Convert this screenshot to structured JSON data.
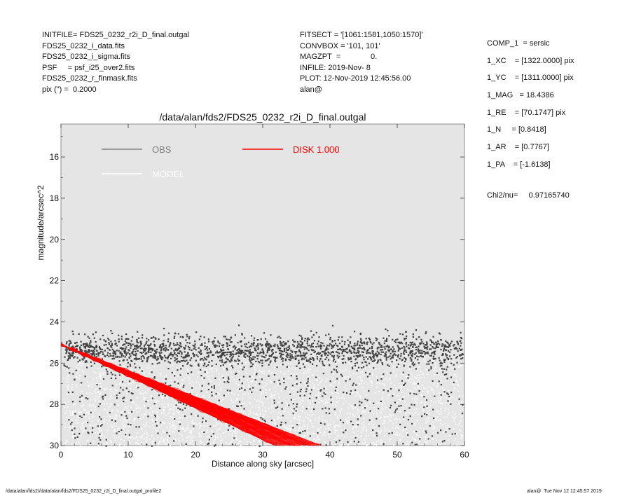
{
  "header_left": [
    "INITFILE= FDS25_0232_r2i_D_final.outgal",
    "FDS25_0232_i_data.fits",
    "FDS25_0232_i_sigma.fits",
    "PSF     = psf_i25_over2.fits",
    "FDS25_0232_r_finmask.fits",
    "pix (\") =  0.2000"
  ],
  "header_middle": [
    "FITSECT = '[1061:1581,1050:1570]'",
    "CONVBOX = '101, 101'",
    "MAGZPT  =              0.",
    "INFILE: 2019-Nov- 8",
    "PLOT: 12-Nov-2019 12:45:56.00",
    "alan@"
  ],
  "header_right": [
    "COMP_1  = sersic",
    "1_XC    = [1322.0000] pix",
    "1_YC    = [1311.0000] pix",
    "1_MAG   = 18.4386",
    "1_RE    = [70.1747] pix",
    "1_N     = [0.8418]",
    "1_AR    = [0.7767]",
    "1_PA    = [-1.6138]"
  ],
  "chi2_text": "Chi2/nu=     0.97165740",
  "footer_left": "/data/alan/fds2//data/alan/fds2/FDS25_0232_r2i_D_final.outgal_profile2",
  "footer_right": "alan@  Tue Nov 12 12:45:57 2019",
  "chart_data": {
    "type": "scatter",
    "title": "/data/alan/fds2/FDS25_0232_r2i_D_final.outgal",
    "xlabel": "Distance along sky [arcsec]",
    "ylabel": "magnitude/arcsec^2",
    "xlim": [
      0,
      60
    ],
    "ylim": [
      30,
      14.4
    ],
    "y_inverted": true,
    "x_ticks": [
      0,
      10,
      20,
      30,
      40,
      50,
      60
    ],
    "y_ticks": [
      16,
      18,
      20,
      22,
      24,
      26,
      28,
      30
    ],
    "background": "#e5e5e5",
    "legend_placement": "top-left",
    "legend": [
      {
        "label": "OBS",
        "color": "#808080"
      },
      {
        "label": "MODEL",
        "color": "#ffffff"
      },
      {
        "label": "DISK  1.000",
        "color": "#ff0000"
      }
    ],
    "series": [
      {
        "name": "OBS",
        "color": "#404040",
        "y_mean": 25.3,
        "y_spread": 0.35,
        "y_tail_max": 30
      },
      {
        "name": "MODEL",
        "color": "#ffffff",
        "y_min": 25.5,
        "y_max": 30
      },
      {
        "name": "DISK  1.000",
        "color": "#ff0000",
        "upper_edge": [
          [
            0,
            25.1
          ],
          [
            38.6,
            30
          ]
        ],
        "lower_edge": [
          [
            0,
            25.1
          ],
          [
            31.8,
            30
          ]
        ]
      }
    ]
  }
}
